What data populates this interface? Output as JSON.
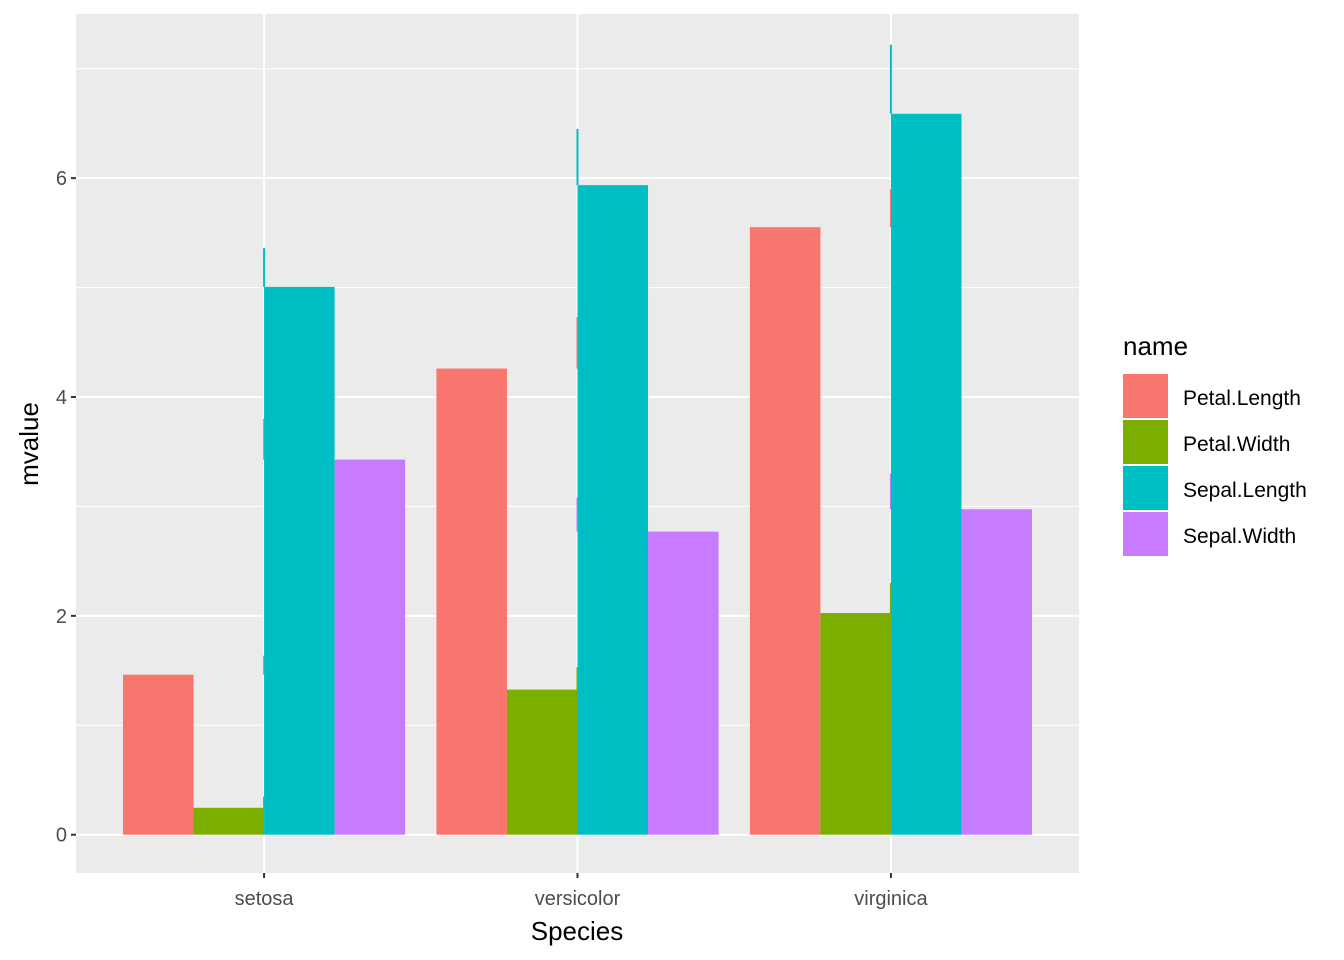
{
  "chart_data": {
    "type": "bar",
    "xlabel": "Species",
    "ylabel": "mvalue",
    "categories": [
      "setosa",
      "versicolor",
      "virginica"
    ],
    "ylim": [
      -0.35,
      7.5
    ],
    "yticks": [
      0,
      2,
      4,
      6
    ],
    "grid": true,
    "legend": {
      "title": "name",
      "position": "right"
    },
    "series": [
      {
        "name": "Petal.Length",
        "color": "#F8766D",
        "values": [
          1.462,
          4.26,
          5.552
        ],
        "error_top": [
          1.636,
          4.73,
          5.9
        ]
      },
      {
        "name": "Petal.Width",
        "color": "#7CAE00",
        "values": [
          0.246,
          1.326,
          2.026
        ],
        "error_top": [
          0.35,
          1.53,
          2.3
        ]
      },
      {
        "name": "Sepal.Length",
        "color": "#00BFC4",
        "values": [
          5.006,
          5.936,
          6.588
        ],
        "error_top": [
          5.36,
          6.45,
          7.22
        ]
      },
      {
        "name": "Sepal.Width",
        "color": "#C77CFF",
        "values": [
          3.428,
          2.77,
          2.974
        ],
        "error_top": [
          3.8,
          3.08,
          3.3
        ]
      }
    ]
  }
}
